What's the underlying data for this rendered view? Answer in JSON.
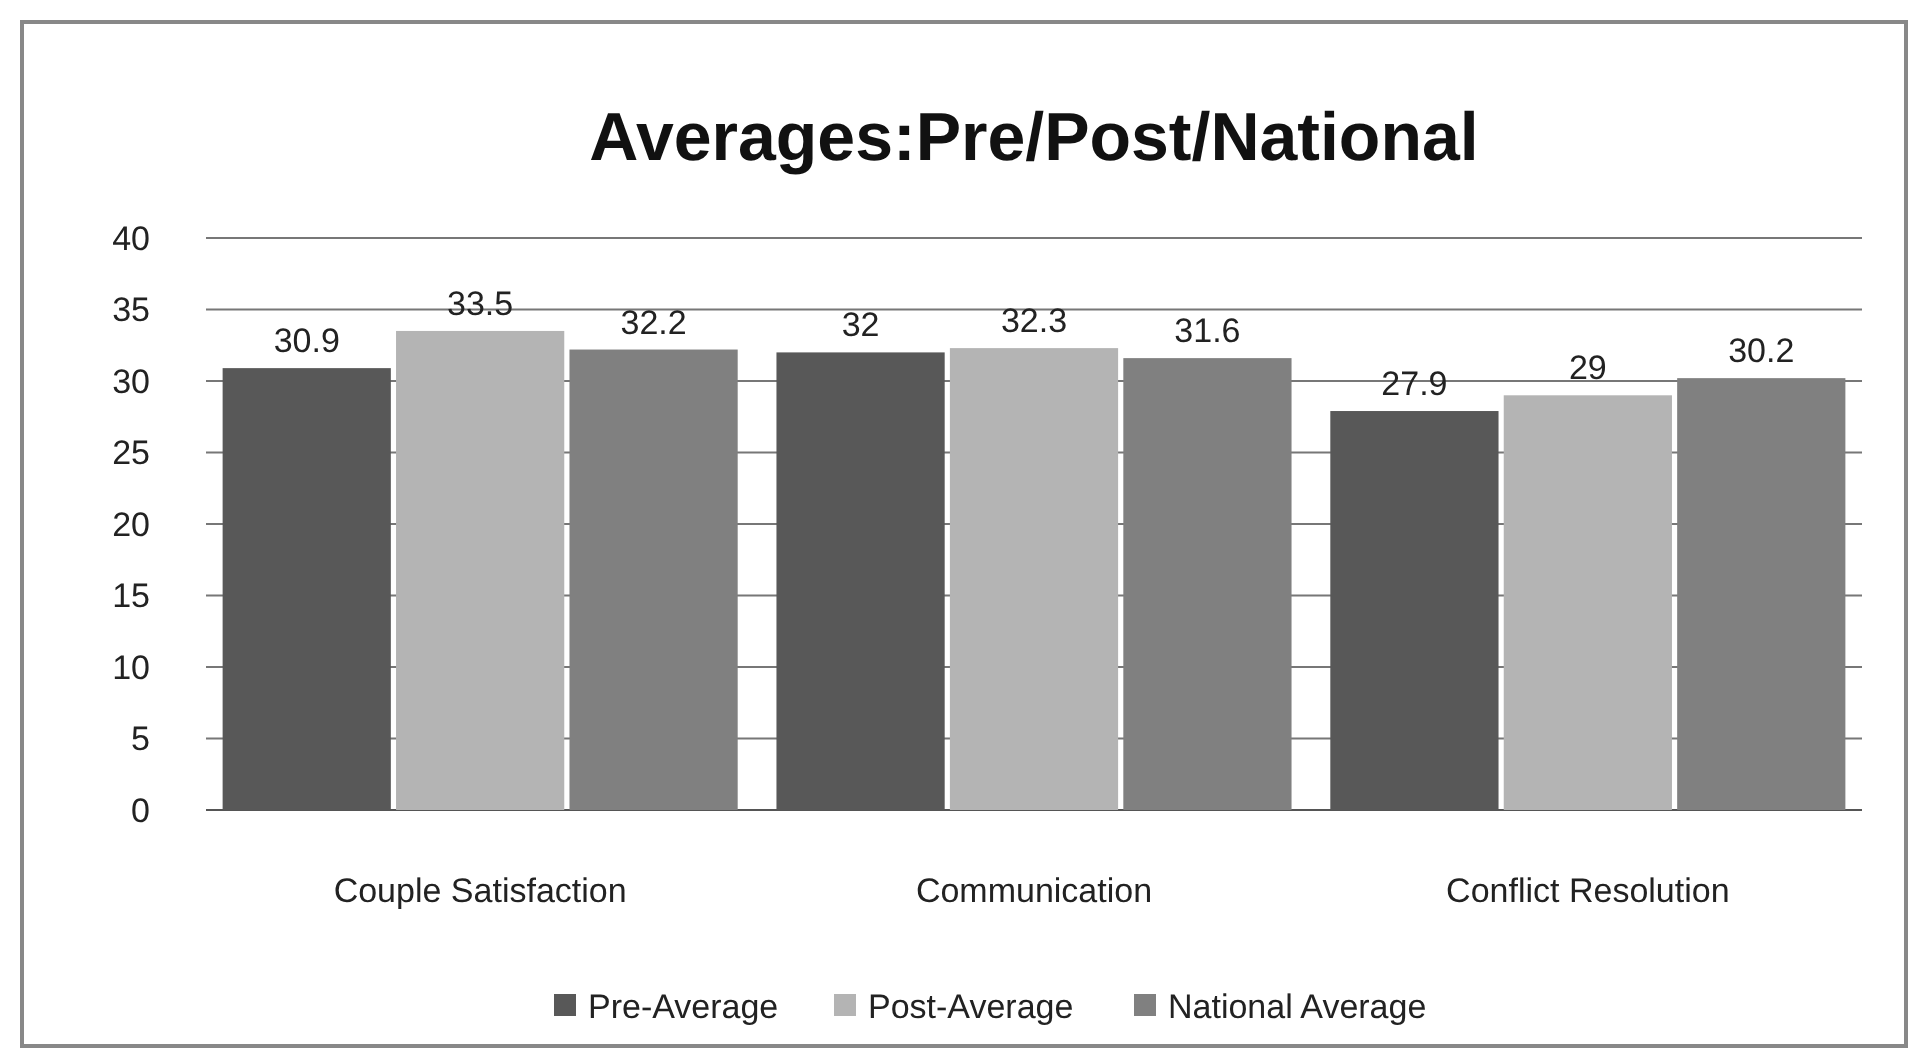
{
  "chart_data": {
    "type": "bar",
    "title": "Averages:Pre/Post/National",
    "categories": [
      "Couple Satisfaction",
      "Communication",
      "Conflict Resolution"
    ],
    "series": [
      {
        "name": "Pre-Average",
        "color": "#585858",
        "values": [
          30.9,
          32,
          27.9
        ]
      },
      {
        "name": "Post-Average",
        "color": "#b4b4b4",
        "values": [
          33.5,
          32.3,
          29
        ]
      },
      {
        "name": "National Average",
        "color": "#808080",
        "values": [
          32.2,
          31.6,
          30.2
        ]
      }
    ],
    "ylim": [
      0,
      40
    ],
    "yticks": [
      0,
      5,
      10,
      15,
      20,
      25,
      30,
      35,
      40
    ],
    "grid": "y",
    "legend": "bottom",
    "data_labels": true
  }
}
